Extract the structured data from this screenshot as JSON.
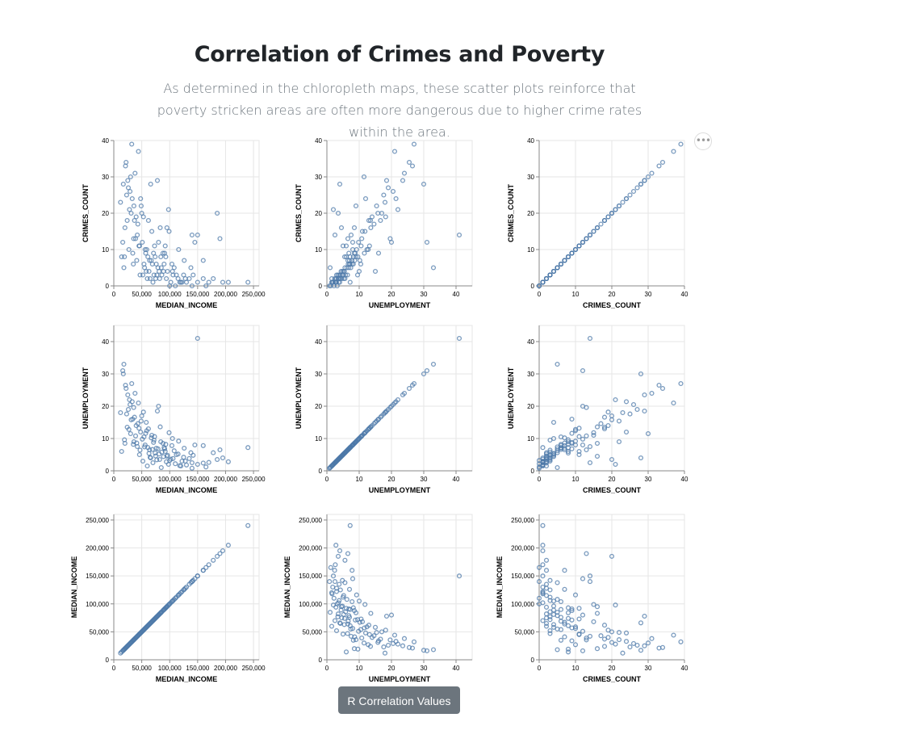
{
  "page": {
    "title": "Correlation of Crimes and Poverty",
    "subtitle": "As determined in the chloropleth maps, these scatter plots reinforce that poverty stricken areas are often more dangerous due to higher crime rates within the area.",
    "actions_label": "•••",
    "button_label": "R Correlation Values"
  },
  "style": {
    "point_color": "#4c78a8",
    "grid_color": "#e6e6e6",
    "axis_color": "#888888"
  },
  "axes": {
    "CRIMES_COUNT": {
      "title": "CRIMES_COUNT",
      "domain": [
        0,
        40
      ],
      "ticks": [
        0,
        10,
        20,
        30,
        40
      ],
      "tick_labels": [
        "0",
        "10",
        "20",
        "30",
        "40"
      ]
    },
    "UNEMPLOYMENT": {
      "title": "UNEMPLOYMENT",
      "domain": [
        0,
        45
      ],
      "ticks": [
        0,
        10,
        20,
        30,
        40
      ],
      "tick_labels": [
        "0",
        "10",
        "20",
        "30",
        "40"
      ]
    },
    "MEDIAN_INCOME": {
      "title": "MEDIAN_INCOME",
      "domain": [
        0,
        260000
      ],
      "ticks": [
        0,
        50000,
        100000,
        150000,
        200000,
        250000
      ],
      "tick_labels": [
        "0",
        "50,000",
        "100,000",
        "150,000",
        "200,000",
        "250,000"
      ]
    }
  },
  "chart_data": {
    "type": "scatter",
    "description_rows": [
      "CRIMES_COUNT",
      "UNEMPLOYMENT",
      "MEDIAN_INCOME"
    ],
    "description_cols": [
      "MEDIAN_INCOME",
      "UNEMPLOYMENT",
      "CRIMES_COUNT"
    ],
    "records": [
      [
        240000,
        7.2,
        1
      ],
      [
        205000,
        2.8,
        1
      ],
      [
        195000,
        4.0,
        1
      ],
      [
        178000,
        5.6,
        2
      ],
      [
        150000,
        41.0,
        14
      ],
      [
        185000,
        3.5,
        20
      ],
      [
        190000,
        6.5,
        13
      ],
      [
        160000,
        7.8,
        7
      ],
      [
        145000,
        8.0,
        12
      ],
      [
        140000,
        2.5,
        14
      ],
      [
        128000,
        3.0,
        2
      ],
      [
        120000,
        1.5,
        1
      ],
      [
        112000,
        5.0,
        3
      ],
      [
        105000,
        10.0,
        4
      ],
      [
        98000,
        2.0,
        21
      ],
      [
        95000,
        4.5,
        16
      ],
      [
        92000,
        6.0,
        11
      ],
      [
        88000,
        8.5,
        9
      ],
      [
        85000,
        1.0,
        5
      ],
      [
        82000,
        3.5,
        2
      ],
      [
        80000,
        20.0,
        12
      ],
      [
        78000,
        18.5,
        29
      ],
      [
        76000,
        7.0,
        6
      ],
      [
        74000,
        5.5,
        8
      ],
      [
        72000,
        9.5,
        3
      ],
      [
        70000,
        2.5,
        1
      ],
      [
        68000,
        11.0,
        15
      ],
      [
        66000,
        4.0,
        28
      ],
      [
        64000,
        6.5,
        7
      ],
      [
        62000,
        13.0,
        18
      ],
      [
        60000,
        1.5,
        2
      ],
      [
        58000,
        15.0,
        4
      ],
      [
        56000,
        8.0,
        10
      ],
      [
        54000,
        10.5,
        6
      ],
      [
        52000,
        3.0,
        3
      ],
      [
        50000,
        17.0,
        20
      ],
      [
        48000,
        12.0,
        24
      ],
      [
        46000,
        5.0,
        11
      ],
      [
        44000,
        21.0,
        37
      ],
      [
        42000,
        7.5,
        14
      ],
      [
        40000,
        14.0,
        19
      ],
      [
        38000,
        24.0,
        31
      ],
      [
        36000,
        9.0,
        22
      ],
      [
        34000,
        16.0,
        9
      ],
      [
        32000,
        27.0,
        39
      ],
      [
        30000,
        11.5,
        30
      ],
      [
        28000,
        22.0,
        21
      ],
      [
        26000,
        19.0,
        27
      ],
      [
        24000,
        13.5,
        18
      ],
      [
        22000,
        25.5,
        34
      ],
      [
        20000,
        8.5,
        16
      ],
      [
        18000,
        33.0,
        5
      ],
      [
        16000,
        31.0,
        12
      ],
      [
        14000,
        6.0,
        8
      ],
      [
        12000,
        18.0,
        23
      ],
      [
        100000,
        3.2,
        0
      ],
      [
        110000,
        2.2,
        0
      ],
      [
        130000,
        1.8,
        1
      ],
      [
        135000,
        3.8,
        2
      ],
      [
        150000,
        2.0,
        1
      ],
      [
        165000,
        1.2,
        0
      ],
      [
        170000,
        2.6,
        1
      ],
      [
        125000,
        4.2,
        3
      ],
      [
        115000,
        5.2,
        2
      ],
      [
        108000,
        6.2,
        5
      ],
      [
        102000,
        3.6,
        1
      ],
      [
        96000,
        4.8,
        4
      ],
      [
        90000,
        7.2,
        6
      ],
      [
        86000,
        5.8,
        3
      ],
      [
        84000,
        9.0,
        8
      ],
      [
        79000,
        6.8,
        5
      ],
      [
        75000,
        4.6,
        2
      ],
      [
        71000,
        8.8,
        9
      ],
      [
        67000,
        10.2,
        7
      ],
      [
        63000,
        5.4,
        4
      ],
      [
        59000,
        12.4,
        10
      ],
      [
        55000,
        7.4,
        5
      ],
      [
        51000,
        9.8,
        12
      ],
      [
        47000,
        6.4,
        3
      ],
      [
        43000,
        14.6,
        17
      ],
      [
        39000,
        10.8,
        13
      ],
      [
        35000,
        8.2,
        6
      ],
      [
        31000,
        15.8,
        20
      ],
      [
        27000,
        12.8,
        10
      ],
      [
        23000,
        17.6,
        25
      ],
      [
        19000,
        9.6,
        8
      ],
      [
        140000,
        0.8,
        0
      ],
      [
        160000,
        2.4,
        2
      ],
      [
        118000,
        1.6,
        1
      ],
      [
        94000,
        2.8,
        2
      ],
      [
        89000,
        4.4,
        4
      ],
      [
        77000,
        3.4,
        3
      ],
      [
        69000,
        6.6,
        6
      ],
      [
        57000,
        11.6,
        9
      ],
      [
        45000,
        13.2,
        11
      ],
      [
        37000,
        16.6,
        18
      ],
      [
        29000,
        20.5,
        26
      ],
      [
        25000,
        23.5,
        29
      ],
      [
        21000,
        26.5,
        33
      ],
      [
        17000,
        30.0,
        28
      ],
      [
        142000,
        4.8,
        3
      ],
      [
        122000,
        3.0,
        1
      ],
      [
        104000,
        7.8,
        6
      ],
      [
        93000,
        8.2,
        8
      ],
      [
        81000,
        5.2,
        4
      ],
      [
        73000,
        10.6,
        11
      ],
      [
        65000,
        4.2,
        2
      ],
      [
        53000,
        18.2,
        19
      ],
      [
        41000,
        8.6,
        7
      ],
      [
        33000,
        21.4,
        24
      ],
      [
        138000,
        5.6,
        5
      ],
      [
        126000,
        7.0,
        7
      ],
      [
        116000,
        9.2,
        10
      ],
      [
        106000,
        3.8,
        3
      ],
      [
        99000,
        11.8,
        15
      ],
      [
        91000,
        6.8,
        9
      ],
      [
        83000,
        13.6,
        16
      ],
      [
        61000,
        7.2,
        8
      ],
      [
        49000,
        15.4,
        22
      ],
      [
        35500,
        19.6,
        13
      ]
    ]
  }
}
